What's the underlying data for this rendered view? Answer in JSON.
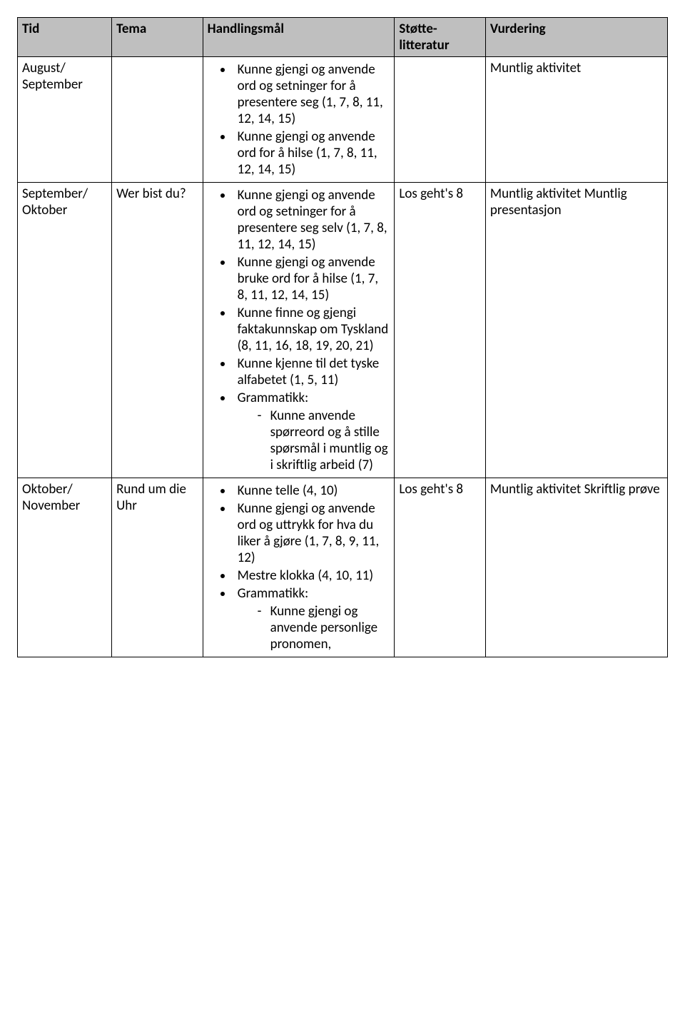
{
  "columns": {
    "tid": "Tid",
    "tema": "Tema",
    "handlingsmal": "Handlingsmål",
    "stotte": "Støtte-\nlitteratur",
    "vurdering": "Vurdering"
  },
  "rows": [
    {
      "tid": "August/ September",
      "tema": "",
      "stotte": "",
      "vurdering": "Muntlig aktivitet",
      "handlingsmal": [
        {
          "text": "Kunne gjengi og anvende ord og setninger for å presentere seg (1, 7, 8, 11, 12, 14, 15)"
        },
        {
          "text": "Kunne gjengi og anvende ord for å hilse (1, 7, 8, 11, 12, 14, 15)"
        }
      ]
    },
    {
      "tid": "September/ Oktober",
      "tema": "Wer bist du?",
      "stotte": "Los geht's 8",
      "vurdering": "Muntlig aktivitet Muntlig presentasjon",
      "handlingsmal": [
        {
          "text": "Kunne gjengi og anvende ord og setninger for å presentere seg selv (1, 7, 8, 11, 12, 14, 15)"
        },
        {
          "text": "Kunne gjengi og anvende bruke ord for å hilse (1, 7, 8, 11, 12, 14, 15)"
        },
        {
          "text": "Kunne finne og gjengi faktakunnskap om Tyskland (8, 11, 16, 18, 19, 20, 21)"
        },
        {
          "text": "Kunne kjenne til det tyske alfabetet (1, 5, 11)"
        },
        {
          "text": "Grammatikk:",
          "sub": [
            "Kunne anvende spørreord og å stille spørsmål i muntlig og i skriftlig arbeid (7)"
          ]
        }
      ]
    },
    {
      "tid": "Oktober/ November",
      "tema": "Rund um die Uhr",
      "stotte": "Los geht's 8",
      "vurdering": "Muntlig aktivitet Skriftlig prøve",
      "handlingsmal": [
        {
          "text": "Kunne telle (4, 10)"
        },
        {
          "text": "Kunne gjengi og anvende ord og uttrykk for hva du liker å gjøre (1, 7, 8, 9, 11, 12)"
        },
        {
          "text": "Mestre klokka (4, 10, 11)"
        },
        {
          "text": "Grammatikk:",
          "sub": [
            "Kunne gjengi og anvende personlige pronomen,"
          ]
        }
      ]
    }
  ],
  "styling": {
    "header_bg": "#bfbfbf",
    "border_color": "#000000",
    "font_family": "Calibri",
    "font_size_pt": 14
  }
}
